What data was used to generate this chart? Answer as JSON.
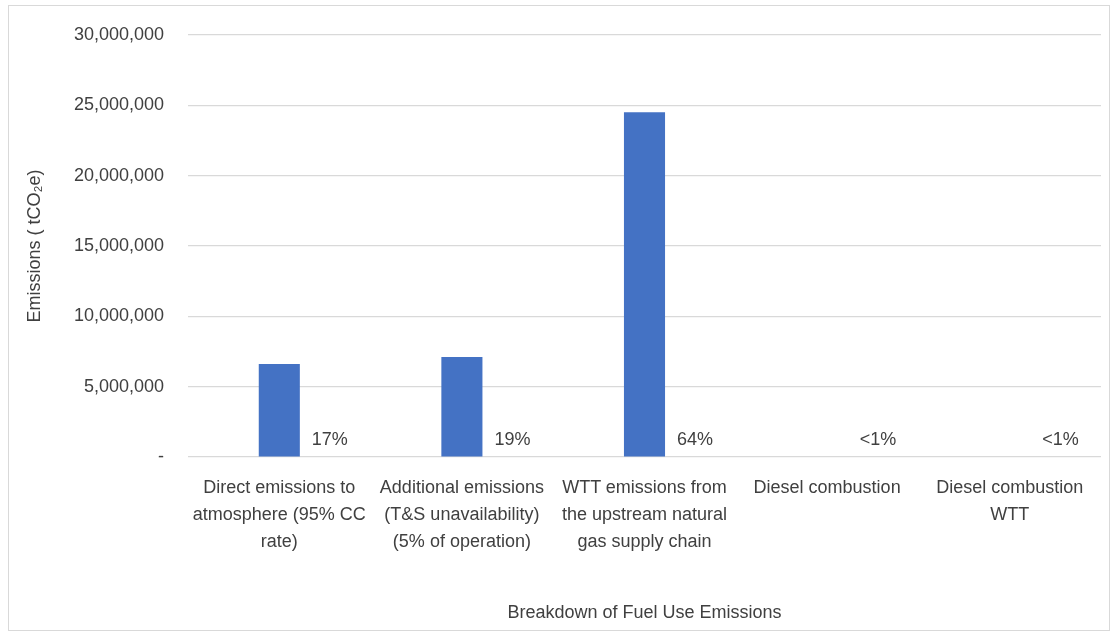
{
  "chart_data": {
    "type": "bar",
    "xlabel": "Breakdown of Fuel Use Emissions",
    "ylabel": "Emissions ( tCO₂e)",
    "categories": [
      "Direct emissions to atmosphere (95% CC rate)",
      "Additional emissions (T&S unavailability) (5% of operation)",
      "WTT emissions from the upstream natural gas supply chain",
      "Diesel combustion",
      "Diesel combustion WTT"
    ],
    "values": [
      6600000,
      7100000,
      24500000,
      0,
      0
    ],
    "color": "#4472c4",
    "annotations": [
      "17%",
      "19%",
      "64%",
      "<1%",
      "<1%"
    ],
    "ylim": [
      0,
      30000000
    ],
    "yticks": [
      {
        "value": 0,
        "label": "-"
      },
      {
        "value": 5000000,
        "label": "5,000,000"
      },
      {
        "value": 10000000,
        "label": "10,000,000"
      },
      {
        "value": 15000000,
        "label": "15,000,000"
      },
      {
        "value": 20000000,
        "label": "20,000,000"
      },
      {
        "value": 25000000,
        "label": "25,000,000"
      },
      {
        "value": 30000000,
        "label": "30,000,000"
      }
    ],
    "grid": "y"
  }
}
